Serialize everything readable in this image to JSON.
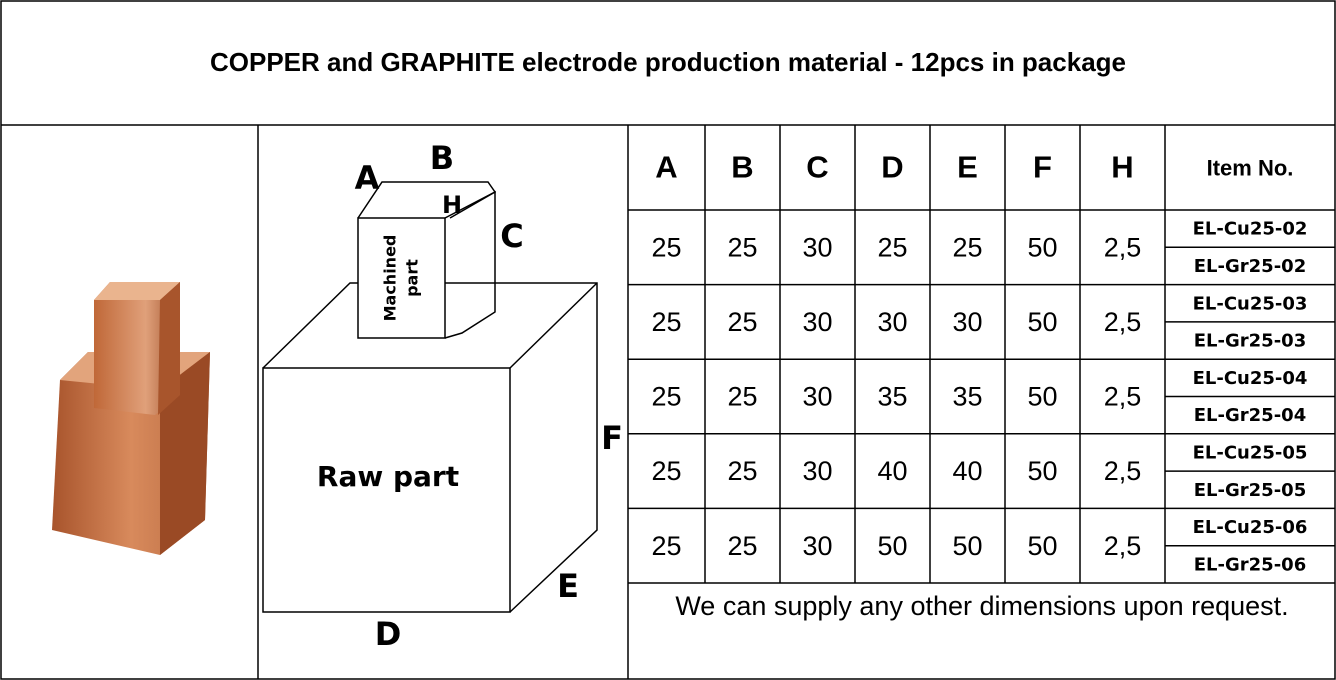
{
  "title": "COPPER and GRAPHITE electrode production material -  12pcs in package",
  "diagram": {
    "a": "A",
    "b": "B",
    "h": "H",
    "c": "C",
    "machined": [
      "Machined",
      "part"
    ],
    "f": "F",
    "raw": "Raw part",
    "e": "E",
    "d": "D"
  },
  "table": {
    "headers": [
      "A",
      "B",
      "C",
      "D",
      "E",
      "F",
      "H",
      "Item No."
    ],
    "rows": [
      {
        "values": [
          "25",
          "25",
          "30",
          "25",
          "25",
          "50",
          "2,5"
        ],
        "items": [
          "EL-Cu25-02",
          "EL-Gr25-02"
        ]
      },
      {
        "values": [
          "25",
          "25",
          "30",
          "30",
          "30",
          "50",
          "2,5"
        ],
        "items": [
          "EL-Cu25-03",
          "EL-Gr25-03"
        ]
      },
      {
        "values": [
          "25",
          "25",
          "30",
          "35",
          "35",
          "50",
          "2,5"
        ],
        "items": [
          "EL-Cu25-04",
          "EL-Gr25-04"
        ]
      },
      {
        "values": [
          "25",
          "25",
          "30",
          "40",
          "40",
          "50",
          "2,5"
        ],
        "items": [
          "EL-Cu25-05",
          "EL-Gr25-05"
        ]
      },
      {
        "values": [
          "25",
          "25",
          "30",
          "50",
          "50",
          "50",
          "2,5"
        ],
        "items": [
          "EL-Cu25-06",
          "EL-Gr25-06"
        ]
      }
    ],
    "note": "We can supply any other dimensions upon request."
  }
}
